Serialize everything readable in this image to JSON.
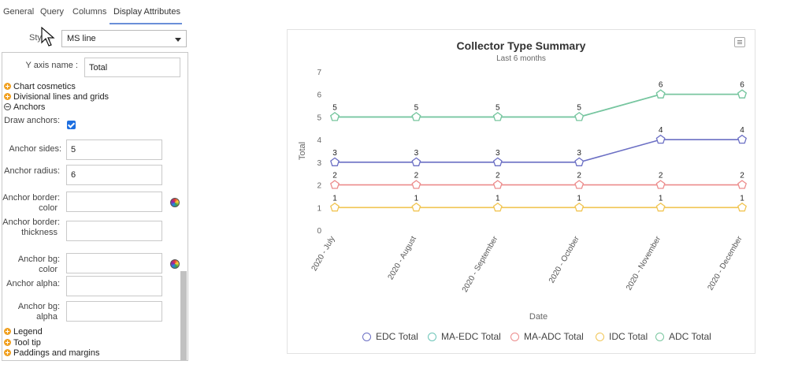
{
  "tabs": [
    "General",
    "Query",
    "Columns",
    "Display Attributes"
  ],
  "style": {
    "label": "Style:",
    "value": "MS line"
  },
  "settings": {
    "y_axis_name_label": "Y axis name :",
    "y_axis_name_value": "Total",
    "sections": {
      "chart_cosmetics": "Chart cosmetics",
      "divisional_lines": "Divisional lines and grids",
      "anchors": "Anchors",
      "legend": "Legend",
      "tool_tip": "Tool tip",
      "paddings": "Paddings and margins"
    },
    "draw_anchors_label": "Draw anchors",
    "draw_anchors_checked": true,
    "anchor_sides_label": "Anchor sides",
    "anchor_sides_value": "5",
    "anchor_radius_label": "Anchor radius",
    "anchor_radius_value": "6",
    "anchor_border_color_label": "Anchor border color",
    "anchor_border_thickness_label": "Anchor border thickness",
    "anchor_bg_color_label": "Anchor bg color",
    "anchor_alpha_label": "Anchor alpha",
    "anchor_bg_alpha_label": "Anchor bg alpha",
    "colon": ":"
  },
  "chart_data": {
    "type": "line",
    "title": "Collector Type Summary",
    "subtitle": "Last 6 months",
    "xlabel": "Date",
    "ylabel": "Total",
    "ylim": [
      0,
      7
    ],
    "yticks": [
      0,
      1,
      2,
      3,
      4,
      5,
      6,
      7
    ],
    "grid": false,
    "legend_position": "bottom",
    "anchor_shape": "pentagon",
    "categories": [
      "2020 - July",
      "2020 - August",
      "2020 - September",
      "2020 - October",
      "2020 - November",
      "2020 - December"
    ],
    "series": [
      {
        "name": "EDC Total",
        "color": "#6b6fc4",
        "values": [
          3,
          3,
          3,
          3,
          4,
          4
        ]
      },
      {
        "name": "MA-EDC Total",
        "color": "#6cc5b8",
        "values": [
          5,
          5,
          5,
          5,
          6,
          6
        ]
      },
      {
        "name": "MA-ADC Total",
        "color": "#ec8c8c",
        "values": [
          2,
          2,
          2,
          2,
          2,
          2
        ]
      },
      {
        "name": "IDC Total",
        "color": "#f1c553",
        "values": [
          1,
          1,
          1,
          1,
          1,
          1
        ]
      },
      {
        "name": "ADC Total",
        "color": "#78c69e",
        "values": [
          5,
          5,
          5,
          5,
          6,
          6
        ]
      }
    ]
  }
}
